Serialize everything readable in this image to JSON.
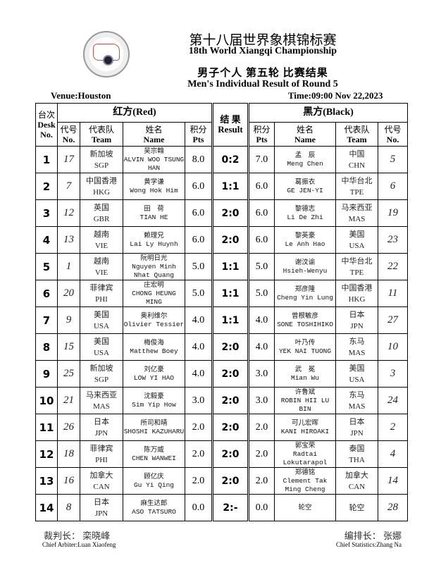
{
  "header": {
    "title_cn": "第十八届世界象棋锦标赛",
    "title_en": "18th World Xiangqi Championship",
    "subtitle_cn": "男子个人 第五轮 比赛结果",
    "subtitle_en": "Men's Individual Result of Round 5",
    "venue": "Venue:Houston",
    "time": "Time:09:00 Nov 22,2023"
  },
  "columns": {
    "desk_cn": "台次",
    "desk_en": "Desk No.",
    "red": "红方(Red)",
    "black": "黑方(Black)",
    "result_cn": "结 果",
    "result_en": "Result",
    "no_cn": "代号",
    "no_en": "No.",
    "team_cn": "代表队",
    "team_en": "Team",
    "name_cn": "姓名",
    "name_en": "Name",
    "pts_cn": "积分",
    "pts_en": "Pts"
  },
  "rows": [
    {
      "desk": "1",
      "red_no": "17",
      "red_team_cn": "新加坡",
      "red_team": "SGP",
      "red_name_cn": "吴宗翰",
      "red_name": "ALVIN WOO TSUNG HAN",
      "red_pts": "8.0",
      "result": "0:2",
      "black_pts": "7.0",
      "black_name_cn": "孟　辰",
      "black_name": "Meng  Chen",
      "black_team_cn": "中国",
      "black_team": "CHN",
      "black_no": "5"
    },
    {
      "desk": "2",
      "red_no": "7",
      "red_team_cn": "中国香港",
      "red_team": "HKG",
      "red_name_cn": "黄学谦",
      "red_name": "Wong Hok Him",
      "red_pts": "6.0",
      "result": "1:1",
      "black_pts": "6.0",
      "black_name_cn": "葛振衣",
      "black_name": "GE JEN-YI",
      "black_team_cn": "中华台北",
      "black_team": "TPE",
      "black_no": "6"
    },
    {
      "desk": "3",
      "red_no": "12",
      "red_team_cn": "英国",
      "red_team": "GBR",
      "red_name_cn": "田　荷",
      "red_name": "TIAN HE",
      "red_pts": "6.0",
      "result": "2:0",
      "black_pts": "6.0",
      "black_name_cn": "黎德志",
      "black_name": "Li De Zhi",
      "black_team_cn": "马来西亚",
      "black_team": "MAS",
      "black_no": "19"
    },
    {
      "desk": "4",
      "red_no": "13",
      "red_team_cn": "越南",
      "red_team": "VIE",
      "red_name_cn": "赖理兄",
      "red_name": "Lai Ly Huynh",
      "red_pts": "6.0",
      "result": "2:0",
      "black_pts": "6.0",
      "black_name_cn": "黎英豪",
      "black_name": "Le Anh Hao",
      "black_team_cn": "美国",
      "black_team": "USA",
      "black_no": "23"
    },
    {
      "desk": "5",
      "red_no": "1",
      "red_team_cn": "越南",
      "red_team": "VIE",
      "red_name_cn": "阮明日光",
      "red_name": "Nguyen Minh Nhat Quang",
      "red_pts": "5.0",
      "result": "1:1",
      "black_pts": "5.0",
      "black_name_cn": "谢汶谕",
      "black_name": "Hsieh-Wenyu",
      "black_team_cn": "中华台北",
      "black_team": "TPE",
      "black_no": "22"
    },
    {
      "desk": "6",
      "red_no": "20",
      "red_team_cn": "菲律宾",
      "red_team": "PHI",
      "red_name_cn": "庄宏明",
      "red_name": "CHONG HEUNG MING",
      "red_pts": "5.0",
      "result": "1:1",
      "black_pts": "5.0",
      "black_name_cn": "郑彦隆",
      "black_name": "Cheng Yin Lung",
      "black_team_cn": "中国香港",
      "black_team": "HKG",
      "black_no": "11"
    },
    {
      "desk": "7",
      "red_no": "9",
      "red_team_cn": "美国",
      "red_team": "USA",
      "red_name_cn": "奥利维尔",
      "red_name": "Olivier Tessier",
      "red_pts": "4.0",
      "result": "1:1",
      "black_pts": "4.0",
      "black_name_cn": "曾根敏彦",
      "black_name": "SONE TOSHIHIKO",
      "black_team_cn": "日本",
      "black_team": "JPN",
      "black_no": "27"
    },
    {
      "desk": "8",
      "red_no": "15",
      "red_team_cn": "美国",
      "red_team": "USA",
      "red_name_cn": "梅俊海",
      "red_name": "Matthew Boey",
      "red_pts": "4.0",
      "result": "2:0",
      "black_pts": "4.0",
      "black_name_cn": "叶乃传",
      "black_name": "YEK NAI TUONG",
      "black_team_cn": "东马",
      "black_team": "MAS",
      "black_no": "10"
    },
    {
      "desk": "9",
      "red_no": "25",
      "red_team_cn": "新加坡",
      "red_team": "SGP",
      "red_name_cn": "刘亿豪",
      "red_name": "LOW YI HAO",
      "red_pts": "4.0",
      "result": "2:0",
      "black_pts": "3.0",
      "black_name_cn": "武　冕",
      "black_name": "Mian Wu",
      "black_team_cn": "美国",
      "black_team": "USA",
      "black_no": "3"
    },
    {
      "desk": "10",
      "red_no": "21",
      "red_team_cn": "马来西亚",
      "red_team": "MAS",
      "red_name_cn": "沈毅豪",
      "red_name": "Sim Yip How",
      "red_pts": "3.0",
      "result": "2:0",
      "black_pts": "3.0",
      "black_name_cn": "许鲁斌",
      "black_name": "ROBIN HII LU BIN",
      "black_team_cn": "东马",
      "black_team": "MAS",
      "black_no": "24"
    },
    {
      "desk": "11",
      "red_no": "26",
      "red_team_cn": "日本",
      "red_team": "JPN",
      "red_name_cn": "所司和晴",
      "red_name": "SHOSHI  KAZUHARU",
      "red_pts": "2.0",
      "result": "2:0",
      "black_pts": "2.0",
      "black_name_cn": "可儿宏晖",
      "black_name": "KANI  HIROAKI",
      "black_team_cn": "日本",
      "black_team": "JPN",
      "black_no": "2"
    },
    {
      "desk": "12",
      "red_no": "18",
      "red_team_cn": "菲律宾",
      "red_team": "PHI",
      "red_name_cn": "陈万威",
      "red_name": "CHEN WANWEI",
      "red_pts": "2.0",
      "result": "2:0",
      "black_pts": "2.0",
      "black_name_cn": "郭宝荣",
      "black_name": "Radtai Lokutarapol",
      "black_team_cn": "泰国",
      "black_team": "THA",
      "black_no": "4"
    },
    {
      "desk": "13",
      "red_no": "16",
      "red_team_cn": "加拿大",
      "red_team": "CAN",
      "red_name_cn": "顾亿庆",
      "red_name": "Gu Yi Qing",
      "red_pts": "2.0",
      "result": "2:0",
      "black_pts": "2.0",
      "black_name_cn": "郑德铭",
      "black_name": "Clement Tak Ming Cheng",
      "black_team_cn": "加拿大",
      "black_team": "CAN",
      "black_no": "14"
    },
    {
      "desk": "14",
      "red_no": "8",
      "red_team_cn": "日本",
      "red_team": "JPN",
      "red_name_cn": "麻生达郎",
      "red_name": "ASO TATSURO",
      "red_pts": "0.0",
      "result": "2:-",
      "black_pts": "0.0",
      "black_name_cn": "轮空",
      "black_name": "",
      "black_team_cn": "轮空",
      "black_team": "",
      "black_no": "28"
    }
  ],
  "footer": {
    "arbiter_cn": "裁判长： 栾晓峰",
    "arbiter_en": "Chief Arbiter:Luan Xiaofeng",
    "stats_cn": "编排长： 张娜",
    "stats_en": "Chief Statistics:Zhang Na"
  }
}
